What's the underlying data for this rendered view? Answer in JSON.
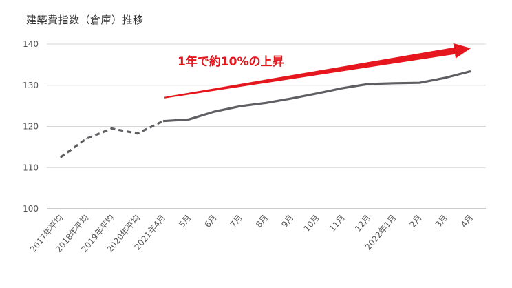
{
  "chart_data": {
    "type": "line",
    "title": "建築費指数（倉庫）推移",
    "xlabel": "",
    "ylabel": "",
    "categories": [
      "2017年平均",
      "2018年平均",
      "2019年平均",
      "2020年平均",
      "2021年4月",
      "5月",
      "6月",
      "7月",
      "8月",
      "9月",
      "10月",
      "11月",
      "12月",
      "2022年1月",
      "2月",
      "3月",
      "4月"
    ],
    "series": [
      {
        "values": [
          112.5,
          117.0,
          119.5,
          118.3,
          121.3,
          121.7,
          123.6,
          124.9,
          125.7,
          126.8,
          128.0,
          129.3,
          130.3,
          130.5,
          130.6,
          131.8,
          133.4
        ]
      }
    ],
    "dashed_until_index": 4,
    "ylim": [
      100,
      140
    ],
    "yticks": [
      100,
      110,
      120,
      130,
      140
    ],
    "grid": true,
    "annotation": {
      "text": "1年で約10%の上昇",
      "arrow_from": {
        "category": "2021年4月",
        "value": 127.0
      },
      "arrow_to": {
        "category": "4月",
        "value": 139.0
      }
    },
    "colors": {
      "line": "#5f5f63",
      "arrow": "#e5161d",
      "grid": "#d6d6d6",
      "axis": "#9a9a9a"
    }
  }
}
